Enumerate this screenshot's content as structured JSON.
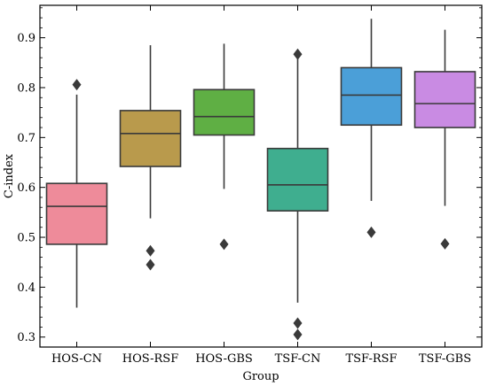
{
  "chart_data": {
    "type": "box",
    "xlabel": "Group",
    "ylabel": "C-index",
    "ylim": [
      0.28,
      0.965
    ],
    "yticks": [
      0.3,
      0.4,
      0.5,
      0.6,
      0.7,
      0.8,
      0.9
    ],
    "ytick_labels": [
      "0.3",
      "0.4",
      "0.5",
      "0.6",
      "0.7",
      "0.8",
      "0.9"
    ],
    "grid": false,
    "groups": [
      {
        "label": "HOS-CN",
        "color": "#ee8b9a",
        "whisker_low": 0.359,
        "q1": 0.486,
        "median": 0.562,
        "q3": 0.608,
        "whisker_high": 0.786,
        "outliers": [
          0.806
        ]
      },
      {
        "label": "HOS-RSF",
        "color": "#b99a4c",
        "whisker_low": 0.538,
        "q1": 0.642,
        "median": 0.708,
        "q3": 0.754,
        "whisker_high": 0.885,
        "outliers": [
          0.473,
          0.445
        ]
      },
      {
        "label": "HOS-GBS",
        "color": "#5faf44",
        "whisker_low": 0.597,
        "q1": 0.705,
        "median": 0.742,
        "q3": 0.796,
        "whisker_high": 0.888,
        "outliers": [
          0.486
        ]
      },
      {
        "label": "TSF-CN",
        "color": "#3fae8f",
        "whisker_low": 0.369,
        "q1": 0.553,
        "median": 0.605,
        "q3": 0.678,
        "whisker_high": 0.858,
        "outliers": [
          0.867,
          0.328,
          0.305
        ]
      },
      {
        "label": "TSF-RSF",
        "color": "#4b9fd8",
        "whisker_low": 0.573,
        "q1": 0.725,
        "median": 0.785,
        "q3": 0.84,
        "whisker_high": 0.938,
        "outliers": [
          0.51
        ]
      },
      {
        "label": "TSF-GBS",
        "color": "#c98be3",
        "whisker_low": 0.563,
        "q1": 0.72,
        "median": 0.768,
        "q3": 0.832,
        "whisker_high": 0.916,
        "outliers": [
          0.487
        ]
      }
    ]
  }
}
